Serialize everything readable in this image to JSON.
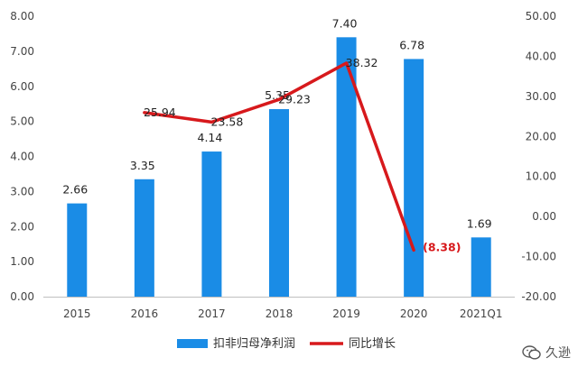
{
  "chart_data": {
    "type": "bar",
    "categories": [
      "2015",
      "2016",
      "2017",
      "2018",
      "2019",
      "2020",
      "2021Q1"
    ],
    "series": [
      {
        "name": "扣非归母净利润",
        "type": "bar",
        "axis": "left",
        "values": [
          2.66,
          3.35,
          4.14,
          5.35,
          7.4,
          6.78,
          1.69
        ],
        "labels": [
          "2.66",
          "3.35",
          "4.14",
          "5.35",
          "7.40",
          "6.78",
          "1.69"
        ],
        "color": "#1a8ce6"
      },
      {
        "name": "同比增长",
        "type": "line",
        "axis": "right",
        "values": [
          null,
          25.94,
          23.58,
          29.23,
          38.32,
          -8.38,
          null
        ],
        "labels": [
          "",
          "25.94",
          "23.58",
          "29.23",
          "38.32",
          "(8.38)",
          ""
        ],
        "color": "#d7191c"
      }
    ],
    "y_left": {
      "lim": [
        0,
        8
      ],
      "ticks": [
        "0.00",
        "1.00",
        "2.00",
        "3.00",
        "4.00",
        "5.00",
        "6.00",
        "7.00",
        "8.00"
      ]
    },
    "y_right": {
      "lim": [
        -20,
        50
      ],
      "ticks": [
        "-20.00",
        "-10.00",
        "0.00",
        "10.00",
        "20.00",
        "30.00",
        "40.00",
        "50.00"
      ]
    },
    "legend_position": "bottom",
    "grid": false
  },
  "watermark": {
    "text": "久逊",
    "icon": "wechat-icon"
  }
}
